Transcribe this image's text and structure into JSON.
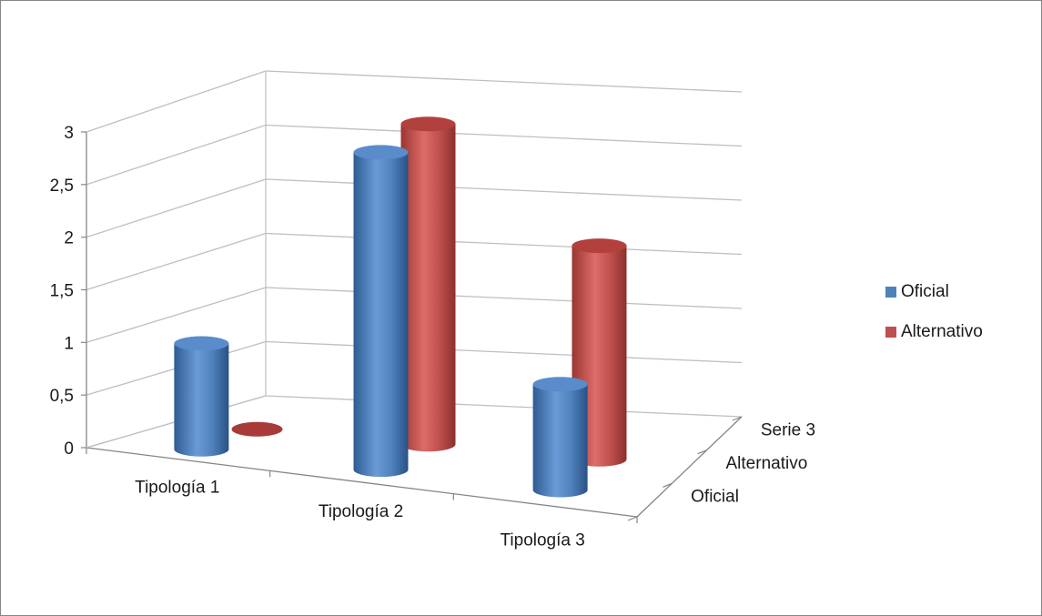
{
  "chart_data": {
    "type": "bar",
    "variant": "3d-cylinder",
    "title": "",
    "xlabel": "",
    "ylabel": "",
    "categories": [
      "Tipología 1",
      "Tipología 2",
      "Tipología 3"
    ],
    "depth_categories": [
      "Oficial",
      "Alternativo",
      "Serie 3"
    ],
    "series": [
      {
        "name": "Oficial",
        "color": "#4f81bd",
        "values": [
          1,
          3,
          1
        ]
      },
      {
        "name": "Alternativo",
        "color": "#c0504d",
        "values": [
          0,
          3,
          2
        ]
      }
    ],
    "y_ticks": [
      "0",
      "0,5",
      "1",
      "1,5",
      "2",
      "2,5",
      "3"
    ],
    "ylim": [
      0,
      3
    ],
    "grid": true,
    "legend_position": "right"
  }
}
